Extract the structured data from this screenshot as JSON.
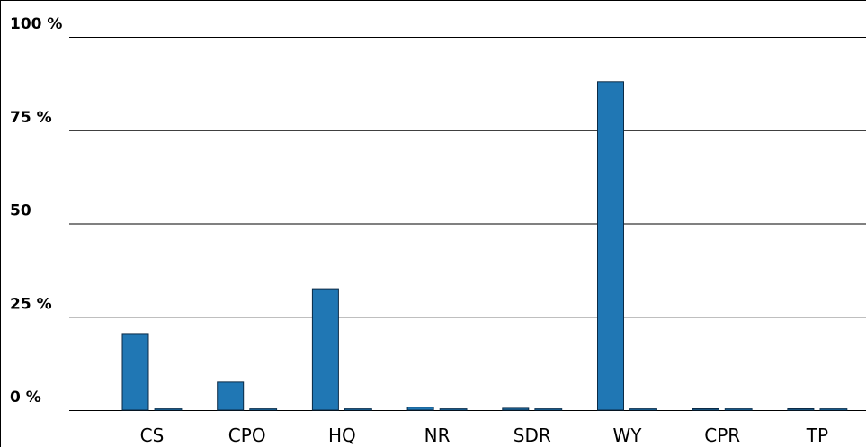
{
  "chart_data": {
    "type": "bar",
    "categories": [
      "CS",
      "CPO",
      "HQ",
      "NR",
      "SDR",
      "WY",
      "CPR",
      "TP"
    ],
    "series": [
      {
        "values": [
          20.5,
          7.5,
          32.5,
          0.8,
          0.5,
          88,
          0,
          0
        ],
        "color": "#2077b4"
      },
      {
        "values": [
          0,
          0,
          0,
          0,
          0,
          0,
          0,
          0
        ],
        "color": "#2077b4"
      }
    ],
    "y_ticks": [
      {
        "value": 0,
        "label": "0 %"
      },
      {
        "value": 25,
        "label": "25 %"
      },
      {
        "value": 50,
        "label": "50"
      },
      {
        "value": 75,
        "label": "75 %"
      },
      {
        "value": 100,
        "label": "100 %"
      }
    ],
    "ylim": [
      0,
      100
    ],
    "grid": true,
    "legend": "none",
    "title": "",
    "xlabel": "",
    "ylabel": "",
    "colors": {
      "bar_fill": "#2077b4",
      "bar_stroke": "#0b2a45",
      "grid": "#000000"
    }
  }
}
